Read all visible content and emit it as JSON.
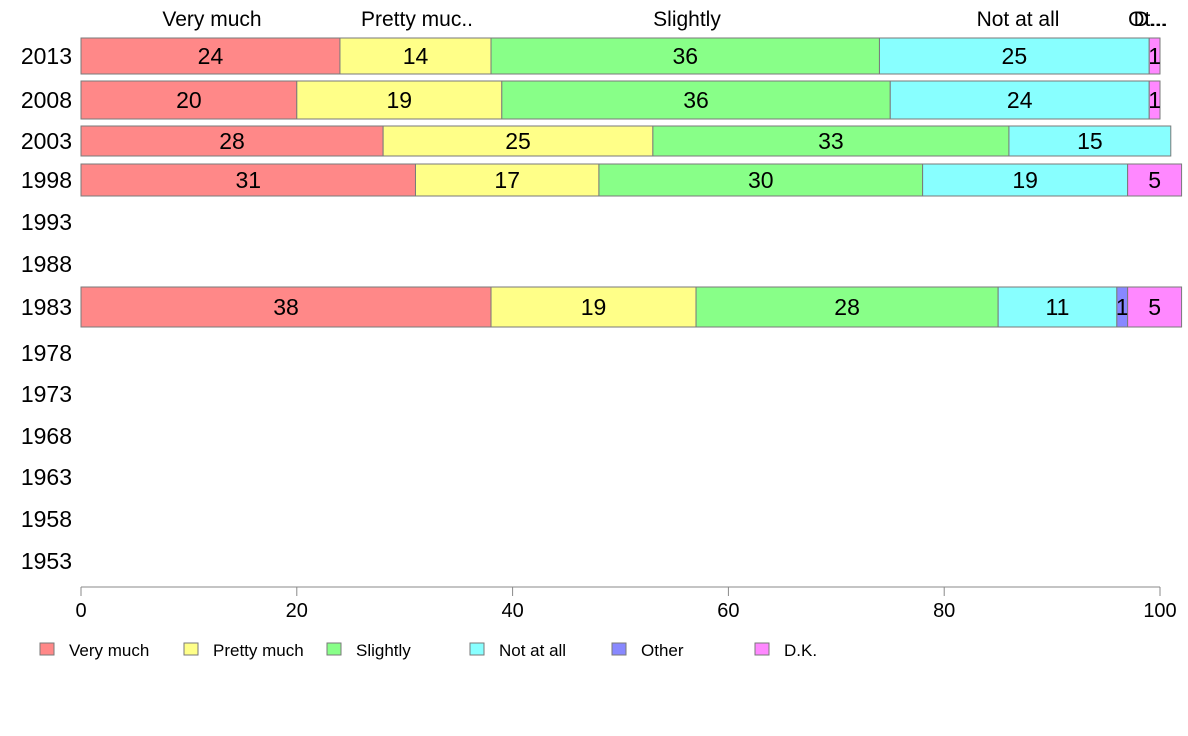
{
  "chart_data": {
    "type": "bar",
    "orientation": "horizontal",
    "stacked": true,
    "categories": [
      "2013",
      "2008",
      "2003",
      "1998",
      "1993",
      "1988",
      "1983",
      "1978",
      "1973",
      "1968",
      "1963",
      "1958",
      "1953"
    ],
    "series": [
      {
        "name": "Very much",
        "color": "#ff8888",
        "values": [
          24,
          20,
          28,
          31,
          null,
          null,
          38,
          null,
          null,
          null,
          null,
          null,
          null
        ]
      },
      {
        "name": "Pretty much",
        "color": "#ffff88",
        "values": [
          14,
          19,
          25,
          17,
          null,
          null,
          19,
          null,
          null,
          null,
          null,
          null,
          null
        ]
      },
      {
        "name": "Slightly",
        "color": "#88ff88",
        "values": [
          36,
          36,
          33,
          30,
          null,
          null,
          28,
          null,
          null,
          null,
          null,
          null,
          null
        ]
      },
      {
        "name": "Not at all",
        "color": "#88ffff",
        "values": [
          25,
          24,
          15,
          19,
          null,
          null,
          11,
          null,
          null,
          null,
          null,
          null,
          null
        ]
      },
      {
        "name": "Other",
        "color": "#8888ff",
        "values": [
          0,
          0,
          0,
          0,
          null,
          null,
          1,
          null,
          null,
          null,
          null,
          null,
          null
        ]
      },
      {
        "name": "D.K.",
        "color": "#ff88ff",
        "values": [
          1,
          1,
          0,
          5,
          null,
          null,
          5,
          null,
          null,
          null,
          null,
          null,
          null
        ]
      }
    ],
    "column_headers": [
      "Very much",
      "Pretty muc..",
      "Slightly",
      "Not at all",
      "Ot...",
      "D..."
    ],
    "xlim": [
      0,
      100
    ],
    "xticks": [
      0,
      20,
      40,
      60,
      80,
      100
    ],
    "legend": {
      "placement": "bottom",
      "labels": [
        "Very much",
        "Pretty much",
        "Slightly",
        "Not at all",
        "Other",
        "D.K."
      ]
    },
    "grid": false
  }
}
